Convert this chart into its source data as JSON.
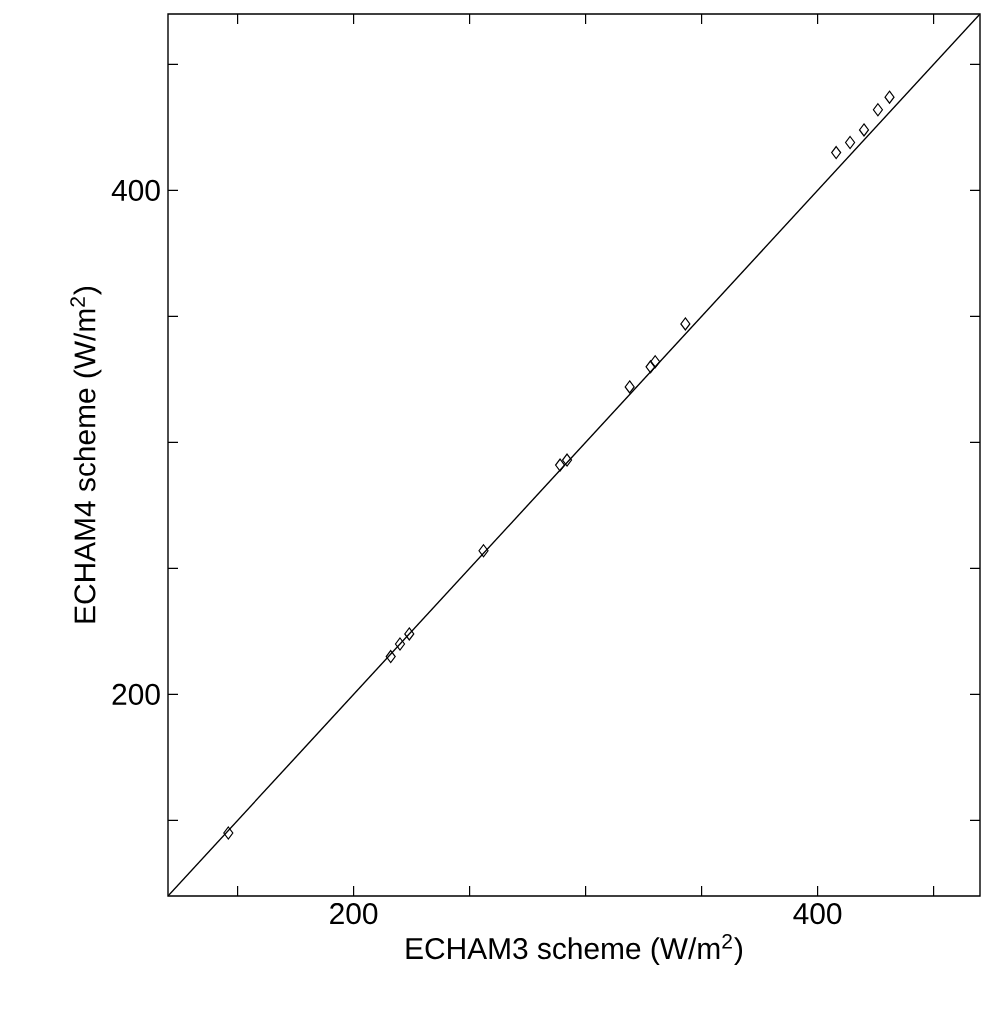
{
  "chart_data": {
    "type": "scatter",
    "xlabel": "ECHAM3 scheme (W/m$^{2}$)",
    "ylabel": "ECHAM4 scheme (W/m$^{2}$)",
    "xlim": [
      120,
      470
    ],
    "ylim": [
      120,
      470
    ],
    "xticks": [
      {
        "value": 150,
        "label": null
      },
      200,
      {
        "value": 250,
        "label": null
      },
      {
        "value": 300,
        "label": null
      },
      {
        "value": 350,
        "label": null
      },
      400,
      {
        "value": 450,
        "label": null
      }
    ],
    "yticks": [
      {
        "value": 150,
        "label": null
      },
      200,
      {
        "value": 250,
        "label": null
      },
      {
        "value": 300,
        "label": null
      },
      {
        "value": 350,
        "label": null
      },
      400,
      {
        "value": 450,
        "label": null
      }
    ],
    "grid": false,
    "marker": "diamond",
    "series": [
      {
        "color": "#000000",
        "x": [
          146,
          216,
          220,
          224,
          256,
          289,
          292,
          319,
          328,
          330,
          343,
          408,
          414,
          420,
          426,
          431
        ],
        "values": [
          145,
          215,
          220,
          224,
          257,
          291,
          293,
          322,
          330,
          332,
          347,
          415,
          419,
          424,
          432,
          437
        ]
      },
      {
        "type": "line",
        "color": "#000000",
        "marker": "none",
        "line_style": "solid",
        "x": [
          120,
          470
        ],
        "values": [
          120,
          470
        ]
      }
    ]
  }
}
